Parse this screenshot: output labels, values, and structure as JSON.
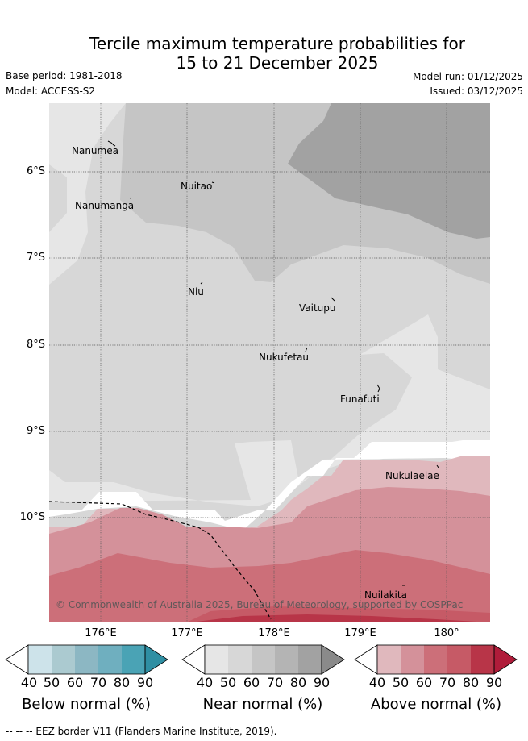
{
  "title": {
    "line1": "Tercile maximum temperature probabilities for",
    "line2": "15 to 21 December 2025"
  },
  "meta": {
    "base_period": "Base period: 1981-2018",
    "model": "Model: ACCESS-S2",
    "model_run": "Model run: 01/12/2025",
    "issued": "Issued: 03/12/2025"
  },
  "map": {
    "lat_labels": [
      "6°S",
      "7°S",
      "8°S",
      "9°S",
      "10°S"
    ],
    "lon_labels": [
      "176°E",
      "177°E",
      "178°E",
      "179°E",
      "180°"
    ],
    "places": [
      "Nanumea",
      "Nuitao",
      "Nanumanga",
      "Niu",
      "Vaitupu",
      "Nukufetau",
      "Funafuti",
      "Nukulaelae",
      "Nuilakita"
    ],
    "copyright": "© Commonwealth of Australia 2025, Bureau of Meteorology, supported by COSPPac"
  },
  "legend": {
    "below": {
      "title": "Below normal (%)",
      "values": [
        "40",
        "50",
        "60",
        "70",
        "80",
        "90"
      ],
      "colors": [
        "#ffffff",
        "#cde3ea",
        "#abcad0",
        "#8cb7c3",
        "#6fafbf",
        "#4aa3b5",
        "#2f8fa3"
      ]
    },
    "near": {
      "title": "Near normal (%)",
      "values": [
        "40",
        "50",
        "60",
        "70",
        "80",
        "90"
      ],
      "colors": [
        "#ffffff",
        "#e6e6e6",
        "#d7d7d7",
        "#c5c5c5",
        "#b4b4b4",
        "#a2a2a2",
        "#8a8a8a"
      ]
    },
    "above": {
      "title": "Above normal (%)",
      "values": [
        "40",
        "50",
        "60",
        "70",
        "80",
        "90"
      ],
      "colors": [
        "#ffffff",
        "#e0b8bd",
        "#d4919a",
        "#cc6f79",
        "#c65a66",
        "#b83548",
        "#b01c3a"
      ]
    }
  },
  "footer": "--  --  -- EEZ border V11 (Flanders Marine Institute, 2019)."
}
